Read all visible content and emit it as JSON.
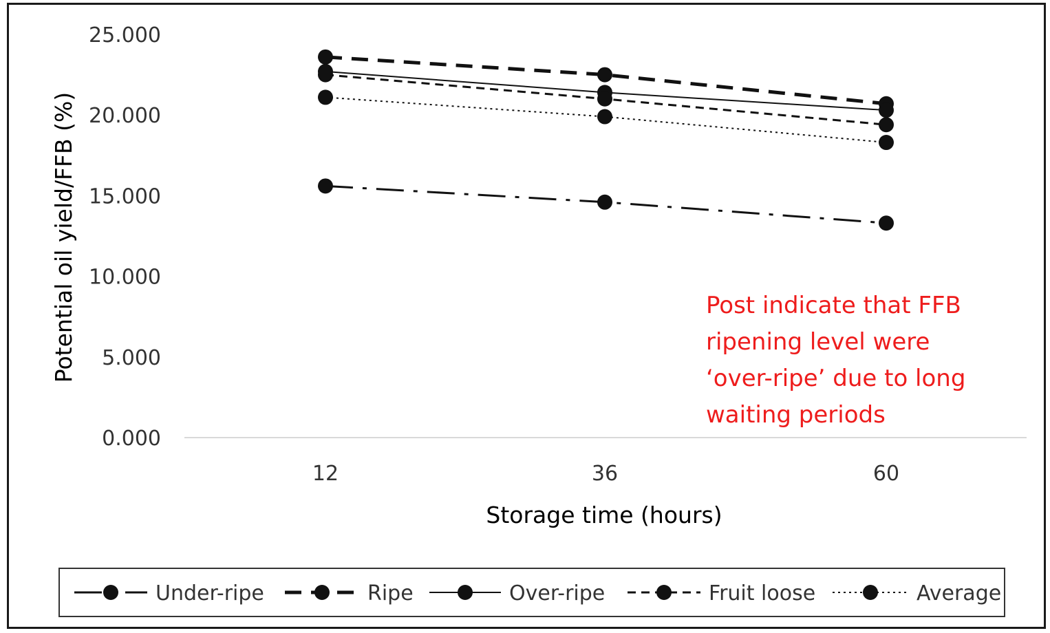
{
  "chart_data": {
    "type": "line",
    "title": "",
    "xlabel": "Storage time (hours)",
    "ylabel": "Potential oil  yield/FFB (%)",
    "categories": [
      "12",
      "36",
      "60"
    ],
    "ylim": [
      0,
      25
    ],
    "yticks": [
      "0.000",
      "5.000",
      "10.000",
      "15.000",
      "20.000",
      "25.000"
    ],
    "grid": false,
    "legend_position": "bottom",
    "series": [
      {
        "name": "Under-ripe",
        "values": [
          15.6,
          14.6,
          13.3
        ],
        "style": "dash-dot"
      },
      {
        "name": "Ripe",
        "values": [
          23.6,
          22.5,
          20.7
        ],
        "style": "long-dash"
      },
      {
        "name": "Over-ripe",
        "values": [
          22.7,
          21.4,
          20.3
        ],
        "style": "solid"
      },
      {
        "name": "Fruit loose",
        "values": [
          22.5,
          21.0,
          19.4
        ],
        "style": "short-dash"
      },
      {
        "name": "Average",
        "values": [
          21.1,
          19.9,
          18.3
        ],
        "style": "dotted"
      }
    ],
    "annotation": {
      "lines": [
        "Post indicate that FFB",
        "ripening level were",
        "‘over-ripe’ due to long",
        "waiting periods"
      ],
      "color": "#ee1c1c"
    },
    "colors": {
      "series": "#111111",
      "axis": "#d9d9d9",
      "text": "#333333"
    }
  }
}
